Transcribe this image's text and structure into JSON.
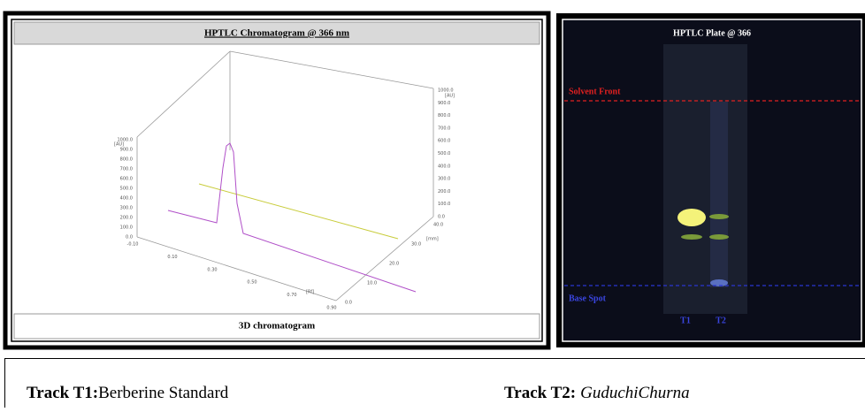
{
  "left_panel": {
    "title": "HPTLC Chromatogram @ 366 nm",
    "footer": "3D chromatogram",
    "plot": {
      "left_axis": {
        "unit": "[AU]",
        "ticks": [
          "1000.0",
          "900.0",
          "800.0",
          "700.0",
          "600.0",
          "500.0",
          "400.0",
          "300.0",
          "200.0",
          "100.0",
          "0.0"
        ]
      },
      "right_axis": {
        "unit": "[AU]",
        "ticks": [
          "1000.0",
          "900.0",
          "800.0",
          "700.0",
          "600.0",
          "500.0",
          "400.0",
          "300.0",
          "200.0",
          "100.0",
          "0.0"
        ]
      },
      "x_axis": {
        "unit": "[Rf]",
        "ticks": [
          "-0.10",
          "0.10",
          "0.30",
          "0.50",
          "0.70",
          "0.90"
        ]
      },
      "depth_axis": {
        "unit": "[mm]",
        "ticks": [
          "0.0",
          "10.0",
          "20.0",
          "30.0",
          "40.0"
        ]
      }
    }
  },
  "right_panel": {
    "title": "HPTLC Plate @ 366",
    "solvent_front": "Solvent Front",
    "base_spot": "Base Spot",
    "tracks": [
      "T1",
      "T2"
    ]
  },
  "caption": {
    "track1": {
      "label": "Track T1:",
      "name": "Berberine Standard"
    },
    "track2": {
      "label": "Track T2:",
      "name": "GuduchiChurna"
    }
  }
}
